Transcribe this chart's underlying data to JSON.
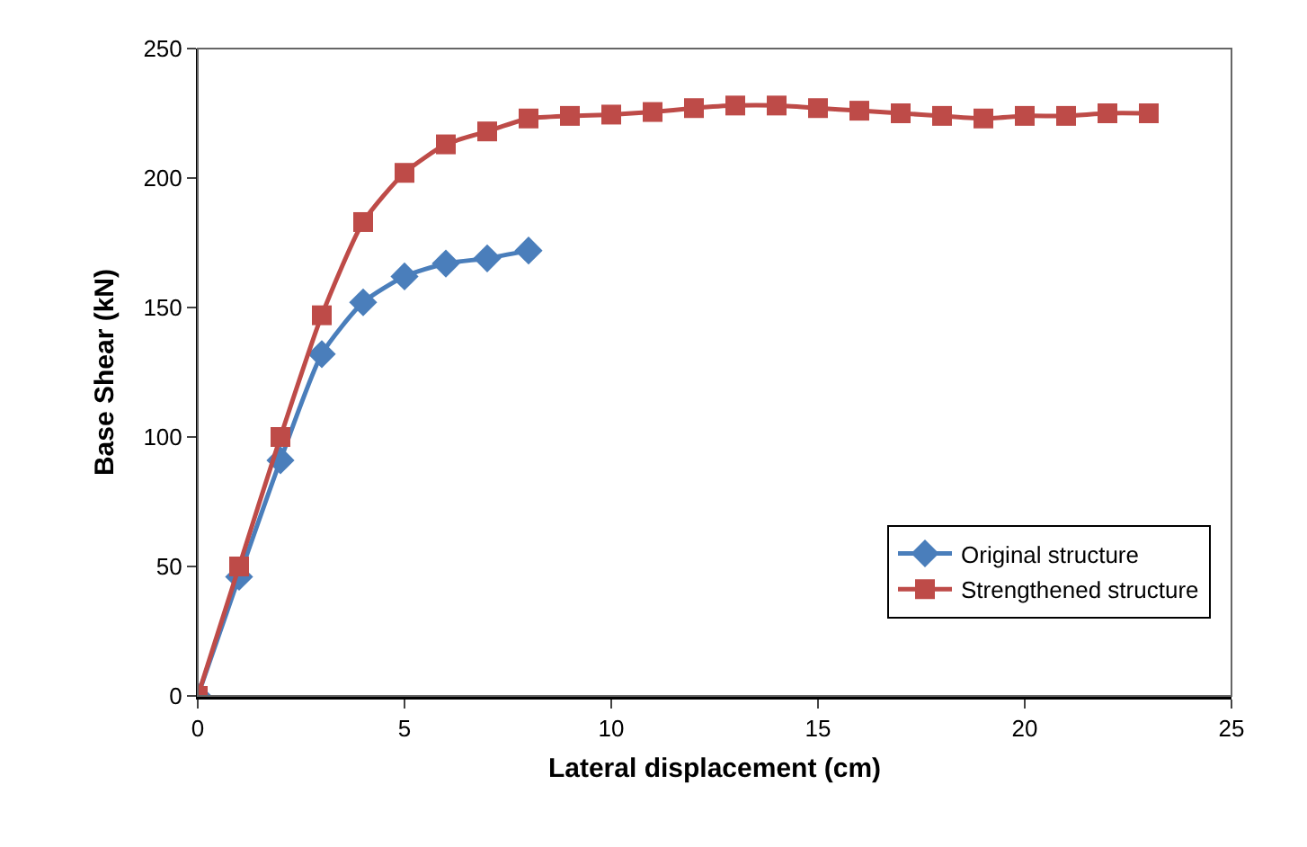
{
  "chart_data": {
    "type": "line",
    "xlabel": "Lateral displacement (cm)",
    "ylabel": "Base Shear (kN)",
    "xlim": [
      0,
      25
    ],
    "xticks": [
      0,
      5,
      10,
      15,
      20,
      25
    ],
    "ylim": [
      0,
      250
    ],
    "yticks": [
      0,
      50,
      100,
      150,
      200,
      250
    ],
    "grid": false,
    "legend": "bottom right",
    "series": [
      {
        "name": "Original structure",
        "color": "#4a7ebb",
        "marker": "diamond",
        "x": [
          0,
          1,
          2,
          3,
          4,
          5,
          6,
          7,
          8
        ],
        "values": [
          0,
          46,
          91,
          132,
          152,
          162,
          167,
          169,
          172
        ]
      },
      {
        "name": "Strengthened structure",
        "color": "#be4b48",
        "marker": "square",
        "x": [
          0,
          1,
          2,
          3,
          4,
          5,
          6,
          7,
          8,
          9,
          10,
          11,
          12,
          13,
          14,
          15,
          16,
          17,
          18,
          19,
          20,
          21,
          22,
          23
        ],
        "values": [
          0,
          50,
          100,
          147,
          183,
          202,
          213,
          218,
          223,
          224,
          224.5,
          225.5,
          227,
          228,
          228,
          227,
          226,
          225,
          224,
          223,
          224,
          224,
          225,
          225
        ]
      }
    ]
  }
}
